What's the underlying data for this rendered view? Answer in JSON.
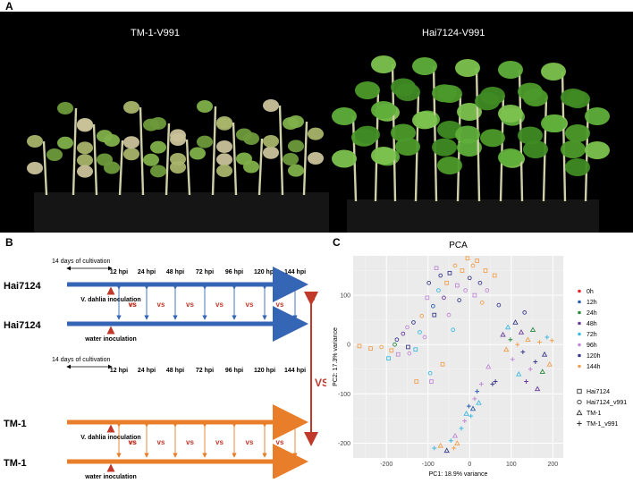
{
  "panels": {
    "a": "A",
    "b": "B",
    "c": "C"
  },
  "photo": {
    "left_title": "TM-1-V991",
    "right_title": "Hai7124-V991"
  },
  "design": {
    "cultivation": "14 days of cultivation",
    "timepoints": [
      "12 hpi",
      "24 hpi",
      "48 hpi",
      "72 hpi",
      "96 hpi",
      "120 hpi",
      "144 hpi"
    ],
    "rows": [
      {
        "label": "Hai7124",
        "color": "#3565b5",
        "group": "top",
        "inoculation": "V. dahlia inoculation"
      },
      {
        "label": "Hai7124",
        "color": "#3565b5",
        "group": "top",
        "inoculation": "water inoculation"
      },
      {
        "label": "TM-1",
        "color": "#e87d2a",
        "group": "bottom",
        "inoculation": "V. dahlia inoculation"
      },
      {
        "label": "TM-1",
        "color": "#e87d2a",
        "group": "bottom",
        "inoculation": "water inoculation"
      }
    ],
    "vs": "vs",
    "big_vs": "VS",
    "vs_color": "#c0392b"
  },
  "chart_data": {
    "type": "scatter",
    "title": "PCA",
    "xlabel": "PC1: 18.9% variance",
    "ylabel": "PC2: 17.3% variance",
    "xlim": [
      -280,
      225
    ],
    "ylim": [
      -230,
      180
    ],
    "xticks": [
      -200,
      -100,
      0,
      100,
      200
    ],
    "yticks": [
      -200,
      -100,
      0,
      100
    ],
    "grid": true,
    "legend_position": "right",
    "time_legend": [
      {
        "name": "0h",
        "color": "#e5262a"
      },
      {
        "name": "12h",
        "color": "#2b5fae"
      },
      {
        "name": "24h",
        "color": "#2a8a3e"
      },
      {
        "name": "48h",
        "color": "#6a3d9a"
      },
      {
        "name": "72h",
        "color": "#3fb9e0"
      },
      {
        "name": "96h",
        "color": "#c08ad6"
      },
      {
        "name": "120h",
        "color": "#3c3c8c"
      },
      {
        "name": "144h",
        "color": "#f0a050"
      }
    ],
    "shape_legend": [
      {
        "name": "Hai7124",
        "shape": "square"
      },
      {
        "name": "Hai7124_v991",
        "shape": "circle"
      },
      {
        "name": "TM-1",
        "shape": "triangle"
      },
      {
        "name": "TM-1_v991",
        "shape": "plus"
      }
    ],
    "points": [
      {
        "x": -265,
        "y": -3,
        "t": 7,
        "s": 0
      },
      {
        "x": -238,
        "y": -8,
        "t": 7,
        "s": 0
      },
      {
        "x": -212,
        "y": -5,
        "t": 7,
        "s": 1
      },
      {
        "x": -195,
        "y": -28,
        "t": 4,
        "s": 0
      },
      {
        "x": -188,
        "y": -12,
        "t": 7,
        "s": 0
      },
      {
        "x": -180,
        "y": 0,
        "t": 2,
        "s": 1
      },
      {
        "x": -175,
        "y": 10,
        "t": 6,
        "s": 1
      },
      {
        "x": -172,
        "y": -20,
        "t": 5,
        "s": 0
      },
      {
        "x": -160,
        "y": 22,
        "t": 3,
        "s": 1
      },
      {
        "x": -150,
        "y": 35,
        "t": 5,
        "s": 1
      },
      {
        "x": -148,
        "y": -5,
        "t": 6,
        "s": 0
      },
      {
        "x": -145,
        "y": -18,
        "t": 5,
        "s": 1
      },
      {
        "x": -135,
        "y": 45,
        "t": 6,
        "s": 1
      },
      {
        "x": -130,
        "y": -10,
        "t": 4,
        "s": 0
      },
      {
        "x": -128,
        "y": -75,
        "t": 7,
        "s": 0
      },
      {
        "x": -120,
        "y": 25,
        "t": 4,
        "s": 1
      },
      {
        "x": -115,
        "y": 58,
        "t": 7,
        "s": 1
      },
      {
        "x": -108,
        "y": 15,
        "t": 5,
        "s": 1
      },
      {
        "x": -102,
        "y": 95,
        "t": 5,
        "s": 0
      },
      {
        "x": -98,
        "y": 125,
        "t": 6,
        "s": 1
      },
      {
        "x": -95,
        "y": -58,
        "t": 4,
        "s": 1
      },
      {
        "x": -92,
        "y": -75,
        "t": 5,
        "s": 0
      },
      {
        "x": -88,
        "y": 78,
        "t": 1,
        "s": 1
      },
      {
        "x": -85,
        "y": 60,
        "t": 6,
        "s": 0
      },
      {
        "x": -80,
        "y": 155,
        "t": 5,
        "s": 0
      },
      {
        "x": -75,
        "y": 110,
        "t": 4,
        "s": 1
      },
      {
        "x": -70,
        "y": 140,
        "t": 6,
        "s": 1
      },
      {
        "x": -65,
        "y": -40,
        "t": 7,
        "s": 0
      },
      {
        "x": -62,
        "y": 95,
        "t": 3,
        "s": 1
      },
      {
        "x": -55,
        "y": 125,
        "t": 7,
        "s": 0
      },
      {
        "x": -50,
        "y": 60,
        "t": 5,
        "s": 1
      },
      {
        "x": -48,
        "y": 145,
        "t": 6,
        "s": 0
      },
      {
        "x": -40,
        "y": 30,
        "t": 4,
        "s": 1
      },
      {
        "x": -35,
        "y": 160,
        "t": 7,
        "s": 1
      },
      {
        "x": -30,
        "y": 120,
        "t": 5,
        "s": 0
      },
      {
        "x": -25,
        "y": 90,
        "t": 6,
        "s": 1
      },
      {
        "x": -18,
        "y": 150,
        "t": 7,
        "s": 0
      },
      {
        "x": -10,
        "y": 110,
        "t": 5,
        "s": 1
      },
      {
        "x": -5,
        "y": 175,
        "t": 7,
        "s": 0
      },
      {
        "x": 0,
        "y": 135,
        "t": 6,
        "s": 1
      },
      {
        "x": 8,
        "y": 160,
        "t": 7,
        "s": 1
      },
      {
        "x": 12,
        "y": 100,
        "t": 5,
        "s": 0
      },
      {
        "x": 18,
        "y": 170,
        "t": 7,
        "s": 0
      },
      {
        "x": 25,
        "y": 125,
        "t": 6,
        "s": 1
      },
      {
        "x": 30,
        "y": 85,
        "t": 7,
        "s": 1
      },
      {
        "x": 38,
        "y": 150,
        "t": 7,
        "s": 0
      },
      {
        "x": 42,
        "y": 110,
        "t": 5,
        "s": 1
      },
      {
        "x": 60,
        "y": 140,
        "t": 7,
        "s": 0
      },
      {
        "x": 70,
        "y": 80,
        "t": 6,
        "s": 1
      },
      {
        "x": -85,
        "y": -210,
        "t": 4,
        "s": 3
      },
      {
        "x": -70,
        "y": -205,
        "t": 7,
        "s": 2
      },
      {
        "x": -55,
        "y": -215,
        "t": 6,
        "s": 2
      },
      {
        "x": -45,
        "y": -195,
        "t": 4,
        "s": 3
      },
      {
        "x": -38,
        "y": -210,
        "t": 7,
        "s": 3
      },
      {
        "x": -35,
        "y": -185,
        "t": 5,
        "s": 2
      },
      {
        "x": -30,
        "y": -200,
        "t": 7,
        "s": 2
      },
      {
        "x": -20,
        "y": -170,
        "t": 4,
        "s": 3
      },
      {
        "x": -12,
        "y": -155,
        "t": 5,
        "s": 3
      },
      {
        "x": -8,
        "y": -140,
        "t": 4,
        "s": 2
      },
      {
        "x": -2,
        "y": -125,
        "t": 1,
        "s": 3
      },
      {
        "x": 3,
        "y": -145,
        "t": 4,
        "s": 3
      },
      {
        "x": 8,
        "y": -130,
        "t": 1,
        "s": 2
      },
      {
        "x": 12,
        "y": -110,
        "t": 5,
        "s": 3
      },
      {
        "x": 18,
        "y": -95,
        "t": 1,
        "s": 3
      },
      {
        "x": 22,
        "y": -118,
        "t": 4,
        "s": 2
      },
      {
        "x": 28,
        "y": -80,
        "t": 5,
        "s": 3
      },
      {
        "x": 45,
        "y": -45,
        "t": 5,
        "s": 2
      },
      {
        "x": 55,
        "y": -80,
        "t": 6,
        "s": 3
      },
      {
        "x": 62,
        "y": -75,
        "t": 6,
        "s": 3
      },
      {
        "x": 80,
        "y": 20,
        "t": 3,
        "s": 2
      },
      {
        "x": 88,
        "y": -10,
        "t": 7,
        "s": 2
      },
      {
        "x": 92,
        "y": 35,
        "t": 4,
        "s": 2
      },
      {
        "x": 98,
        "y": 10,
        "t": 2,
        "s": 3
      },
      {
        "x": 103,
        "y": -30,
        "t": 5,
        "s": 3
      },
      {
        "x": 110,
        "y": 45,
        "t": 6,
        "s": 2
      },
      {
        "x": 115,
        "y": 0,
        "t": 7,
        "s": 3
      },
      {
        "x": 118,
        "y": -60,
        "t": 4,
        "s": 2
      },
      {
        "x": 124,
        "y": 25,
        "t": 3,
        "s": 2
      },
      {
        "x": 128,
        "y": -15,
        "t": 6,
        "s": 3
      },
      {
        "x": 132,
        "y": 65,
        "t": 6,
        "s": 1
      },
      {
        "x": 136,
        "y": -75,
        "t": 3,
        "s": 3
      },
      {
        "x": 140,
        "y": 10,
        "t": 7,
        "s": 2
      },
      {
        "x": 146,
        "y": -50,
        "t": 5,
        "s": 3
      },
      {
        "x": 152,
        "y": 30,
        "t": 2,
        "s": 2
      },
      {
        "x": 158,
        "y": -35,
        "t": 6,
        "s": 3
      },
      {
        "x": 163,
        "y": -90,
        "t": 3,
        "s": 2
      },
      {
        "x": 168,
        "y": 5,
        "t": 7,
        "s": 3
      },
      {
        "x": 175,
        "y": -55,
        "t": 2,
        "s": 2
      },
      {
        "x": 180,
        "y": -20,
        "t": 6,
        "s": 2
      },
      {
        "x": 186,
        "y": 15,
        "t": 4,
        "s": 3
      },
      {
        "x": 192,
        "y": -40,
        "t": 7,
        "s": 2
      },
      {
        "x": 198,
        "y": 8,
        "t": 7,
        "s": 3
      }
    ]
  }
}
